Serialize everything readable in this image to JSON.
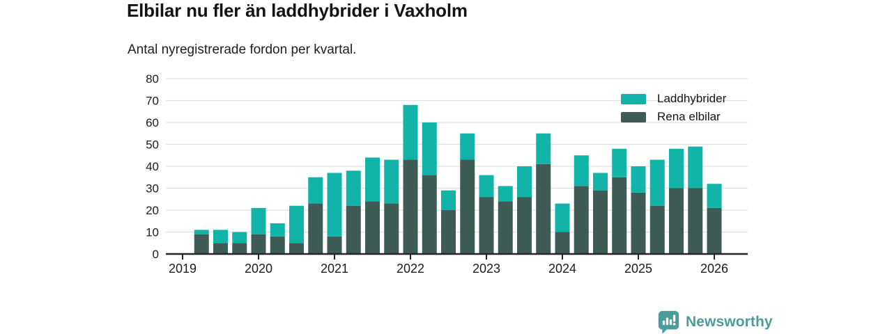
{
  "header": {
    "title": "Elbilar nu fler än laddhybrider i Vaxholm",
    "subtitle": "Antal nyregistrerade fordon per kvartal."
  },
  "legend": [
    {
      "label": "Laddhybrider",
      "color": "#12b3a8"
    },
    {
      "label": "Rena elbilar",
      "color": "#3e5c55"
    }
  ],
  "footer": {
    "brand": "Newsworthy",
    "brand_color": "#4a9d9c"
  },
  "chart_data": {
    "type": "bar",
    "stacked": true,
    "title": "Elbilar nu fler än laddhybrider i Vaxholm",
    "subtitle": "Antal nyregistrerade fordon per kvartal.",
    "quarters": [
      "2019 Q2",
      "2019 Q3",
      "2019 Q4",
      "2020 Q1",
      "2020 Q2",
      "2020 Q3",
      "2020 Q4",
      "2021 Q1",
      "2021 Q2",
      "2021 Q3",
      "2021 Q4",
      "2022 Q1",
      "2022 Q2",
      "2022 Q3",
      "2022 Q4",
      "2023 Q1",
      "2023 Q2",
      "2023 Q3",
      "2023 Q4",
      "2024 Q1",
      "2024 Q2",
      "2024 Q3",
      "2024 Q4",
      "2025 Q1",
      "2025 Q2",
      "2025 Q3",
      "2025 Q4",
      "2026 Q1"
    ],
    "series": [
      {
        "name": "Rena elbilar",
        "color": "#3e5c55",
        "values": [
          9,
          5,
          5,
          9,
          8,
          5,
          23,
          8,
          22,
          24,
          23,
          43,
          36,
          20,
          43,
          26,
          24,
          26,
          41,
          10,
          31,
          29,
          35,
          28,
          22,
          30,
          30,
          21
        ]
      },
      {
        "name": "Laddhybrider",
        "color": "#12b3a8",
        "values": [
          2,
          6,
          5,
          12,
          6,
          17,
          12,
          29,
          16,
          20,
          20,
          25,
          24,
          9,
          12,
          10,
          7,
          14,
          14,
          13,
          14,
          8,
          13,
          12,
          21,
          18,
          19,
          11
        ]
      }
    ],
    "totals": [
      11,
      11,
      10,
      21,
      14,
      22,
      35,
      37,
      38,
      44,
      43,
      68,
      60,
      29,
      55,
      36,
      31,
      40,
      55,
      23,
      45,
      37,
      48,
      40,
      43,
      48,
      49,
      32
    ],
    "ylim": [
      0,
      80
    ],
    "yticks": [
      0,
      10,
      20,
      30,
      40,
      50,
      60,
      70,
      80
    ],
    "xticks": [
      "2019",
      "2020",
      "2021",
      "2022",
      "2023",
      "2024",
      "2025",
      "2026"
    ],
    "grid": "horizontal",
    "legend_position": "top-right",
    "colors": {
      "grid": "#e0e0e0",
      "axis": "#262626",
      "tick_label": "#1c1c1c"
    }
  }
}
